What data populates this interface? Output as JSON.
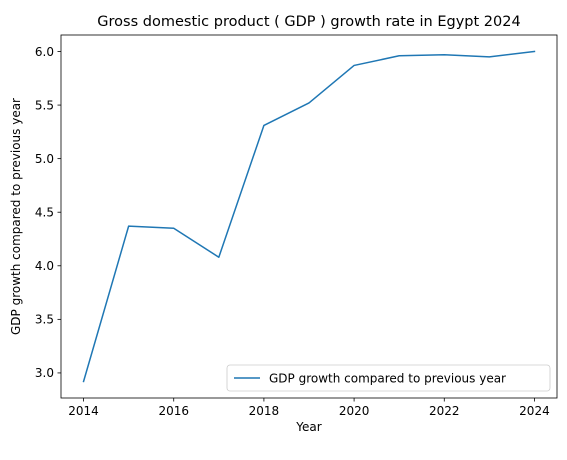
{
  "chart_data": {
    "type": "line",
    "title": "Gross domestic product ( GDP ) growth rate in Egypt 2024",
    "xlabel": "Year",
    "ylabel": "GDP growth compared to previous year",
    "x": [
      2014,
      2015,
      2016,
      2017,
      2018,
      2019,
      2020,
      2021,
      2022,
      2023,
      2024
    ],
    "series": [
      {
        "name": "GDP growth compared to previous year",
        "color": "#1f77b4",
        "values": [
          2.92,
          4.37,
          4.35,
          4.08,
          5.31,
          5.52,
          5.87,
          5.96,
          5.97,
          5.95,
          6.0
        ]
      }
    ],
    "xlim": [
      2013.5,
      2024.5
    ],
    "ylim": [
      2.766,
      6.154
    ],
    "x_ticks": [
      "2014",
      "2016",
      "2018",
      "2020",
      "2022",
      "2024"
    ],
    "y_ticks": [
      "3.0",
      "3.5",
      "4.0",
      "4.5",
      "5.0",
      "5.5",
      "6.0"
    ],
    "grid": false,
    "legend_position": "lower-right"
  }
}
